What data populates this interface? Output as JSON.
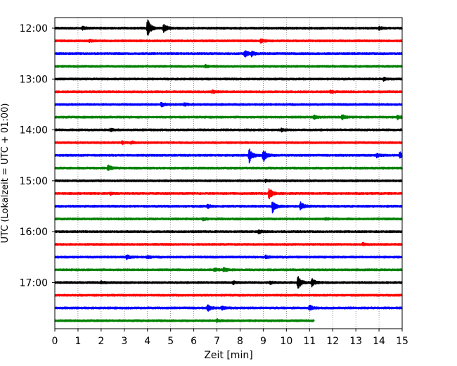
{
  "chart_data": {
    "type": "line",
    "title": "",
    "xlabel": "Zeit  [min]",
    "ylabel": "UTC (Lokalzeit = UTC + 01:00)",
    "xlim": [
      0,
      15
    ],
    "xticks": [
      0,
      1,
      2,
      3,
      4,
      5,
      6,
      7,
      8,
      9,
      10,
      11,
      12,
      13,
      14,
      15
    ],
    "y_tick_labels": [
      "12:00",
      "13:00",
      "14:00",
      "15:00",
      "16:00",
      "17:00"
    ],
    "grid": "vertical dotted lines at each minute",
    "legend": "none",
    "series_colors": [
      "#000000",
      "#ff0000",
      "#0000ff",
      "#008000"
    ],
    "row_interval_minutes": 15,
    "rows": [
      {
        "start": "12:00",
        "color": "#000000",
        "events": [
          {
            "t": 4.0,
            "amp": 2.2
          },
          {
            "t": 4.7,
            "amp": 1.0
          },
          {
            "t": 1.2,
            "amp": 0.35
          },
          {
            "t": 14.0,
            "amp": 0.3
          }
        ]
      },
      {
        "start": "12:15",
        "color": "#ff0000",
        "events": [
          {
            "t": 8.9,
            "amp": 0.4
          },
          {
            "t": 1.5,
            "amp": 0.25
          }
        ]
      },
      {
        "start": "12:30",
        "color": "#0000ff",
        "events": [
          {
            "t": 8.2,
            "amp": 0.8
          },
          {
            "t": 8.5,
            "amp": 0.5
          }
        ]
      },
      {
        "start": "12:45",
        "color": "#008000",
        "events": [
          {
            "t": 6.5,
            "amp": 0.25
          }
        ]
      },
      {
        "start": "13:00",
        "color": "#000000",
        "events": [
          {
            "t": 14.2,
            "amp": 0.3
          }
        ]
      },
      {
        "start": "13:15",
        "color": "#ff0000",
        "events": [
          {
            "t": 6.8,
            "amp": 0.35
          },
          {
            "t": 11.9,
            "amp": 0.3
          }
        ]
      },
      {
        "start": "13:30",
        "color": "#0000ff",
        "events": [
          {
            "t": 4.6,
            "amp": 0.5
          },
          {
            "t": 5.6,
            "amp": 0.3
          }
        ]
      },
      {
        "start": "13:45",
        "color": "#008000",
        "events": [
          {
            "t": 11.2,
            "amp": 0.5
          },
          {
            "t": 12.4,
            "amp": 0.5
          },
          {
            "t": 14.8,
            "amp": 0.5
          }
        ]
      },
      {
        "start": "14:00",
        "color": "#000000",
        "events": [
          {
            "t": 9.8,
            "amp": 0.35
          },
          {
            "t": 2.4,
            "amp": 0.25
          }
        ]
      },
      {
        "start": "14:15",
        "color": "#ff0000",
        "events": [
          {
            "t": 2.9,
            "amp": 0.35
          },
          {
            "t": 3.3,
            "amp": 0.3
          }
        ]
      },
      {
        "start": "14:30",
        "color": "#0000ff",
        "events": [
          {
            "t": 8.4,
            "amp": 1.6
          },
          {
            "t": 9.0,
            "amp": 1.6
          },
          {
            "t": 13.9,
            "amp": 0.4
          },
          {
            "t": 14.9,
            "amp": 0.8
          }
        ]
      },
      {
        "start": "14:45",
        "color": "#008000",
        "events": [
          {
            "t": 2.3,
            "amp": 0.7
          }
        ]
      },
      {
        "start": "15:00",
        "color": "#000000",
        "events": [
          {
            "t": 9.1,
            "amp": 0.25
          }
        ]
      },
      {
        "start": "15:15",
        "color": "#ff0000",
        "events": [
          {
            "t": 9.25,
            "amp": 1.4
          },
          {
            "t": 2.4,
            "amp": 0.25
          }
        ]
      },
      {
        "start": "15:30",
        "color": "#0000ff",
        "events": [
          {
            "t": 9.4,
            "amp": 1.4
          },
          {
            "t": 10.6,
            "amp": 1.2
          },
          {
            "t": 6.6,
            "amp": 0.35
          }
        ]
      },
      {
        "start": "15:45",
        "color": "#008000",
        "events": [
          {
            "t": 6.4,
            "amp": 0.25
          },
          {
            "t": 11.7,
            "amp": 0.25
          }
        ]
      },
      {
        "start": "16:00",
        "color": "#000000",
        "events": [
          {
            "t": 8.8,
            "amp": 0.35
          }
        ]
      },
      {
        "start": "16:15",
        "color": "#ff0000",
        "events": [
          {
            "t": 13.3,
            "amp": 0.3
          }
        ]
      },
      {
        "start": "16:30",
        "color": "#0000ff",
        "events": [
          {
            "t": 3.1,
            "amp": 0.45
          },
          {
            "t": 4.0,
            "amp": 0.35
          },
          {
            "t": 9.1,
            "amp": 0.35
          }
        ]
      },
      {
        "start": "16:45",
        "color": "#008000",
        "events": [
          {
            "t": 7.3,
            "amp": 0.5
          },
          {
            "t": 6.9,
            "amp": 0.3
          }
        ]
      },
      {
        "start": "17:00",
        "color": "#000000",
        "events": [
          {
            "t": 10.5,
            "amp": 1.7
          },
          {
            "t": 11.1,
            "amp": 0.9
          },
          {
            "t": 7.7,
            "amp": 0.3
          },
          {
            "t": 9.3,
            "amp": 0.3
          },
          {
            "t": 2.0,
            "amp": 0.25
          }
        ]
      },
      {
        "start": "17:15",
        "color": "#ff0000",
        "events": []
      },
      {
        "start": "17:30",
        "color": "#0000ff",
        "events": [
          {
            "t": 6.6,
            "amp": 0.7
          },
          {
            "t": 11.0,
            "amp": 0.7
          },
          {
            "t": 7.2,
            "amp": 0.4
          }
        ]
      },
      {
        "start": "17:45",
        "color": "#008000",
        "end_minute": 11.2,
        "events": [
          {
            "t": 7.0,
            "amp": 0.3
          }
        ]
      }
    ]
  }
}
